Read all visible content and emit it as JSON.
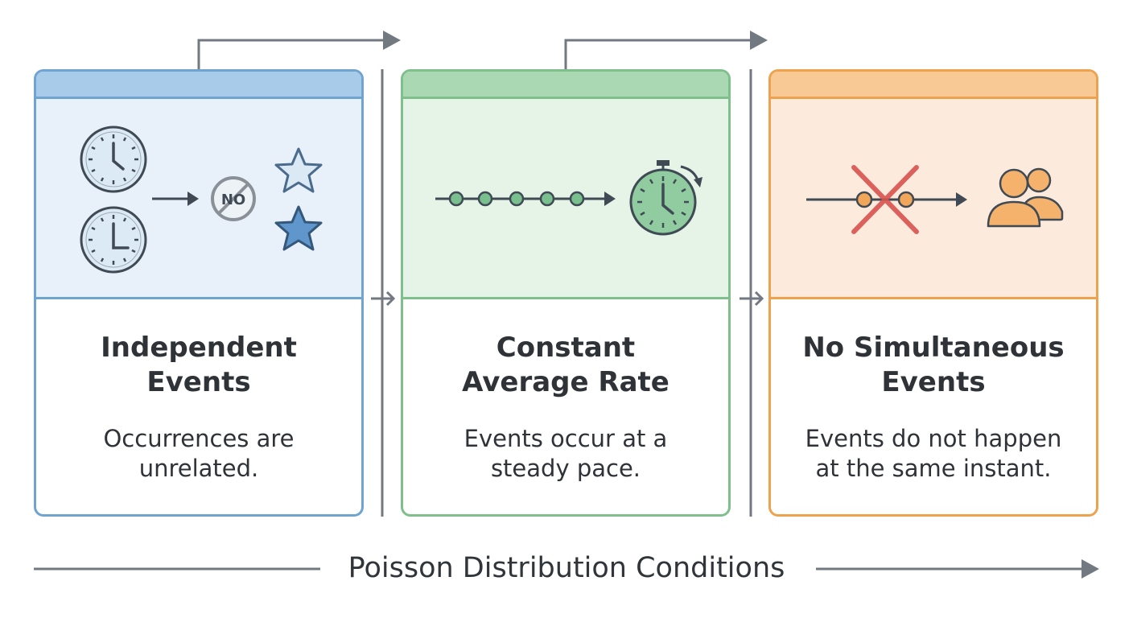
{
  "footer": {
    "title": "Poisson Distribution Conditions"
  },
  "cards": [
    {
      "title_line1": "Independent",
      "title_line2": "Events",
      "desc_line1": "Occurrences are",
      "desc_line2": "unrelated.",
      "accent": "#6fa3d0",
      "header_fill": "#a8cbea",
      "art_fill": "#e8f1fa",
      "icons": [
        "clock-icon",
        "clock-icon",
        "arrow-right-icon",
        "no-sign-icon",
        "star-outline-icon",
        "star-filled-icon"
      ],
      "no_label": "NO"
    },
    {
      "title_line1": "Constant",
      "title_line2": "Average Rate",
      "desc_line1": "Events occur at a",
      "desc_line2": "steady pace.",
      "accent": "#7ebf8c",
      "header_fill": "#a9d8b3",
      "art_fill": "#e6f4e8",
      "icons": [
        "evenly-spaced-events-timeline-icon",
        "stopwatch-icon"
      ]
    },
    {
      "title_line1": "No Simultaneous",
      "title_line2": "Events",
      "desc_line1": "Events do not happen",
      "desc_line2": "at the same instant.",
      "accent": "#eea24e",
      "header_fill": "#f8c895",
      "art_fill": "#fcebdc",
      "icons": [
        "overlapping-events-timeline-icon",
        "red-x-icon",
        "people-icon"
      ]
    }
  ],
  "connector_color": "#6f767e"
}
